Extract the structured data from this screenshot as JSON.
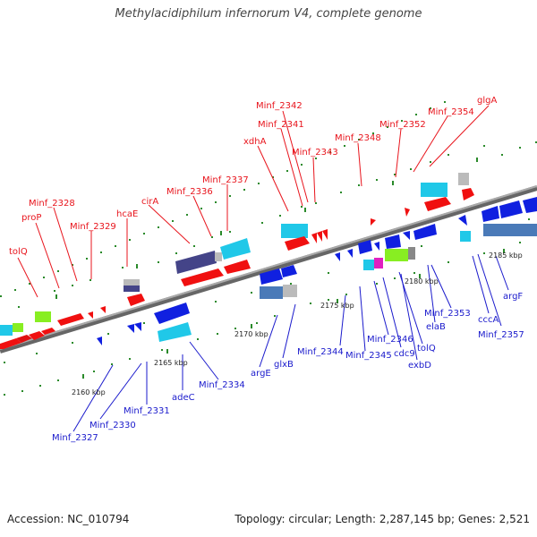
{
  "title": "Methylacidiphilum infernorum V4, complete genome",
  "footer": {
    "accession": "Accession: NC_010794",
    "summary": "Topology: circular; Length: 2,287,145 bp; Genes: 2,521"
  },
  "colors": {
    "forward_label": "#e8141c",
    "reverse_label": "#1a1acc",
    "backbone": "#888888",
    "tick": "#2a8a2a",
    "red_gene": "#f01010",
    "blue_gene": "#1020e0",
    "cyan_gene": "#20c8e8",
    "navy_gene": "#444488",
    "steel_gene": "#4a7ab8",
    "lime_gene": "#88ee22",
    "gray_gene": "#bbbbbb",
    "magenta_gene": "#e020c0"
  },
  "scale_labels": [
    {
      "id": "kbp-2160",
      "text": "2160 kbp"
    },
    {
      "id": "kbp-2165",
      "text": "2165 kbp"
    },
    {
      "id": "kbp-2170",
      "text": "2170 kbp"
    },
    {
      "id": "kbp-2175",
      "text": "2175 kbp"
    },
    {
      "id": "kbp-2180",
      "text": "2180 kbp"
    },
    {
      "id": "kbp-2185",
      "text": "2185 kbp"
    }
  ],
  "forward_labels": [
    {
      "id": "tolQ-fwd",
      "text": "tolQ"
    },
    {
      "id": "proP",
      "text": "proP"
    },
    {
      "id": "minf-2328",
      "text": "Minf_2328"
    },
    {
      "id": "minf-2329",
      "text": "Minf_2329"
    },
    {
      "id": "hcaE",
      "text": "hcaE"
    },
    {
      "id": "cirA",
      "text": "cirA"
    },
    {
      "id": "minf-2336",
      "text": "Minf_2336"
    },
    {
      "id": "minf-2337",
      "text": "Minf_2337"
    },
    {
      "id": "xdhA",
      "text": "xdhA"
    },
    {
      "id": "minf-2342",
      "text": "Minf_2342"
    },
    {
      "id": "minf-2341",
      "text": "Minf_2341"
    },
    {
      "id": "minf-2343",
      "text": "Minf_2343"
    },
    {
      "id": "minf-2348",
      "text": "Minf_2348"
    },
    {
      "id": "minf-2352",
      "text": "Minf_2352"
    },
    {
      "id": "minf-2354",
      "text": "Minf_2354"
    },
    {
      "id": "glgA",
      "text": "glgA"
    }
  ],
  "reverse_labels": [
    {
      "id": "minf-2327",
      "text": "Minf_2327"
    },
    {
      "id": "minf-2330",
      "text": "Minf_2330"
    },
    {
      "id": "minf-2331",
      "text": "Minf_2331"
    },
    {
      "id": "adeC",
      "text": "adeC"
    },
    {
      "id": "minf-2334",
      "text": "Minf_2334"
    },
    {
      "id": "argE",
      "text": "argE"
    },
    {
      "id": "glxB",
      "text": "glxB"
    },
    {
      "id": "minf-2344",
      "text": "Minf_2344"
    },
    {
      "id": "minf-2345",
      "text": "Minf_2345"
    },
    {
      "id": "minf-2346",
      "text": "Minf_2346"
    },
    {
      "id": "cdc9",
      "text": "cdc9"
    },
    {
      "id": "tolQ-rev",
      "text": "tolQ"
    },
    {
      "id": "exbD",
      "text": "exbD"
    },
    {
      "id": "elaB",
      "text": "elaB"
    },
    {
      "id": "minf-2353",
      "text": "Minf_2353"
    },
    {
      "id": "cccA",
      "text": "cccA"
    },
    {
      "id": "minf-2357",
      "text": "Minf_2357"
    },
    {
      "id": "argF",
      "text": "argF"
    }
  ]
}
